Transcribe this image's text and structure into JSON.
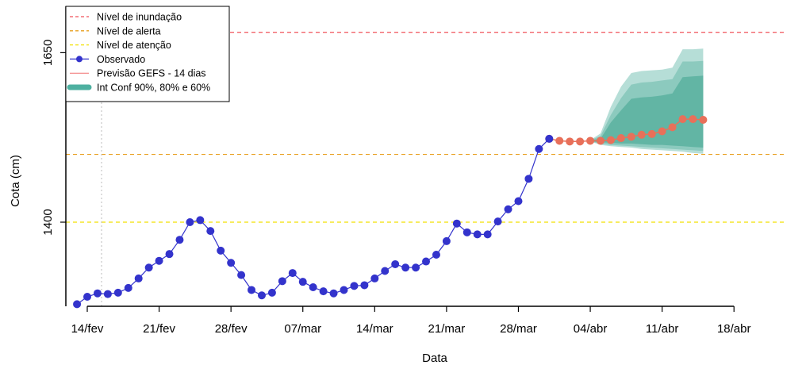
{
  "chart_data": {
    "type": "line",
    "xlabel": "Data",
    "ylabel": "Cota (cm)",
    "x_ticks": [
      "14/fev",
      "21/fev",
      "28/fev",
      "07/mar",
      "14/mar",
      "21/mar",
      "28/mar",
      "04/abr",
      "11/abr",
      "18/abr"
    ],
    "y_ticks": [
      1400,
      1650
    ],
    "ylim": [
      1278,
      1698
    ],
    "xlim_days": [
      -1.5,
      66
    ],
    "x_tick_days": [
      0,
      7,
      14,
      21,
      28,
      35,
      42,
      49,
      56,
      63
    ],
    "first_date": "13/fev",
    "reference_lines": [
      {
        "name": "Nível de inundação",
        "value": 1680,
        "color": "#f0505a",
        "style": "dashed"
      },
      {
        "name": "Nível de alerta",
        "value": 1500,
        "color": "#e8a020",
        "style": "dashed"
      },
      {
        "name": "Nível de atenção",
        "value": 1400,
        "color": "#f2e000",
        "style": "dashed"
      }
    ],
    "observed_dates": [
      "13/fev",
      "14/fev",
      "15/fev",
      "16/fev",
      "17/fev",
      "18/fev",
      "19/fev",
      "20/fev",
      "21/fev",
      "22/fev",
      "23/fev",
      "24/fev",
      "25/fev",
      "26/fev",
      "27/fev",
      "28/fev",
      "01/mar",
      "02/mar",
      "03/mar",
      "04/mar",
      "05/mar",
      "06/mar",
      "07/mar",
      "08/mar",
      "09/mar",
      "10/mar",
      "11/mar",
      "12/mar",
      "13/mar",
      "14/mar",
      "15/mar",
      "16/mar",
      "17/mar",
      "18/mar",
      "19/mar",
      "20/mar",
      "21/mar",
      "22/mar",
      "23/mar",
      "24/mar",
      "25/mar",
      "26/mar",
      "27/mar",
      "28/mar",
      "29/mar",
      "30/mar",
      "31/mar"
    ],
    "observed": [
      1279,
      1290,
      1295,
      1294,
      1296,
      1303,
      1317,
      1333,
      1343,
      1353,
      1374,
      1400,
      1403,
      1387,
      1358,
      1340,
      1322,
      1300,
      1292,
      1296,
      1313,
      1325,
      1312,
      1304,
      1298,
      1295,
      1300,
      1306,
      1307,
      1317,
      1328,
      1338,
      1333,
      1333,
      1342,
      1352,
      1372,
      1398,
      1385,
      1382,
      1382,
      1401,
      1419,
      1431,
      1464,
      1508,
      1523
    ],
    "forecast_dates": [
      "31/mar",
      "01/abr",
      "02/abr",
      "03/abr",
      "04/abr",
      "05/abr",
      "06/abr",
      "07/abr",
      "08/abr",
      "09/abr",
      "10/abr",
      "11/abr",
      "12/abr",
      "13/abr",
      "14/abr",
      "15/abr"
    ],
    "forecast": [
      1523,
      1520,
      1519,
      1519,
      1520,
      1520,
      1521,
      1524,
      1526,
      1529,
      1530,
      1534,
      1540,
      1552,
      1552,
      1551
    ],
    "ci_dates": [
      "04/abr",
      "05/abr",
      "06/abr",
      "07/abr",
      "08/abr",
      "09/abr",
      "10/abr",
      "11/abr",
      "12/abr",
      "13/abr",
      "14/abr",
      "15/abr"
    ],
    "ci90": {
      "lower": [
        1519,
        1514,
        1512,
        1511,
        1510,
        1508,
        1507,
        1506,
        1505,
        1504,
        1502,
        1501
      ],
      "upper": [
        1521,
        1531,
        1570,
        1600,
        1620,
        1623,
        1624,
        1625,
        1628,
        1655,
        1655,
        1656
      ]
    },
    "ci80": {
      "lower": [
        1519,
        1516,
        1514,
        1513,
        1512,
        1511,
        1510,
        1509,
        1508,
        1507,
        1506,
        1505
      ],
      "upper": [
        1521,
        1527,
        1558,
        1583,
        1603,
        1606,
        1607,
        1609,
        1611,
        1637,
        1637,
        1638
      ]
    },
    "ci60": {
      "lower": [
        1519,
        1518,
        1517,
        1516,
        1516,
        1515,
        1514,
        1514,
        1513,
        1512,
        1511,
        1510
      ],
      "upper": [
        1521,
        1523,
        1547,
        1565,
        1582,
        1584,
        1585,
        1587,
        1590,
        1614,
        1615,
        1616
      ]
    },
    "grid": false,
    "legend_placement": "top-left",
    "legend": [
      {
        "label": "Nível de inundação",
        "kind": "dashed",
        "color": "#f0505a"
      },
      {
        "label": "Nível de alerta",
        "kind": "dashed",
        "color": "#e8a020"
      },
      {
        "label": "Nível de atenção",
        "kind": "dashed",
        "color": "#f2e000"
      },
      {
        "label": "Observado",
        "kind": "line-point",
        "color": "#3333cc"
      },
      {
        "label": "Previsão GEFS - 14 dias",
        "kind": "line",
        "color": "#f07070"
      },
      {
        "label": "Int Conf 90%, 80% e 60%",
        "kind": "thick",
        "color": "#4db0a0"
      }
    ],
    "colors": {
      "observed": "#3333cc",
      "forecast_point": "#e8705a",
      "forecast_line": "#e8705a",
      "ci90": "#b6ded7",
      "ci80": "#8ccabe",
      "ci60": "#62b5a4",
      "vline": "#bbbbbb"
    }
  }
}
